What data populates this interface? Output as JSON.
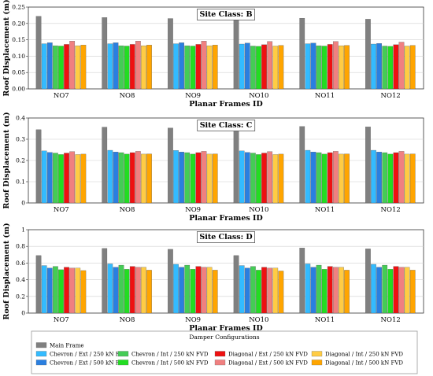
{
  "legend": {
    "title": "Damper Configurations",
    "items": [
      {
        "name": "Main Frame",
        "color": "#808080"
      },
      {
        "name": "Chevron / Ext / 250 kN FVD",
        "color": "#33bbff"
      },
      {
        "name": "Chevron / Ext / 500 kN FVD",
        "color": "#2a7fe0"
      },
      {
        "name": "Chevron / Int / 250 kN FVD",
        "color": "#44cc55"
      },
      {
        "name": "Chevron / Int / 500 kN FVD",
        "color": "#22dd22"
      },
      {
        "name": "Diagonal / Ext / 250 kN FVD",
        "color": "#ee1111"
      },
      {
        "name": "Diagonal / Ext / 500 kN FVD",
        "color": "#f08080"
      },
      {
        "name": "Diagonal / Int / 250 kN FVD",
        "color": "#ffcc44"
      },
      {
        "name": "Diagonal / Int / 500 kN FVD",
        "color": "#ffa500"
      }
    ]
  },
  "chart_data": [
    {
      "type": "bar",
      "title": "Site Class: B",
      "xlabel": "Planar Frames ID",
      "ylabel": "Roof Displacement (m)",
      "ylim": [
        0,
        0.25
      ],
      "yticks": [
        "0.00",
        "0.05",
        "0.10",
        "0.15",
        "0.20",
        "0.25"
      ],
      "grid": true,
      "categories": [
        "NO7",
        "NO8",
        "NO9",
        "NO10",
        "NO11",
        "NO12"
      ],
      "series": [
        {
          "name": "Main Frame",
          "values": [
            0.222,
            0.218,
            0.215,
            0.22,
            0.216,
            0.213
          ]
        },
        {
          "name": "Chevron / Ext / 250 kN FVD",
          "values": [
            0.138,
            0.138,
            0.138,
            0.137,
            0.138,
            0.137
          ]
        },
        {
          "name": "Chevron / Ext / 500 kN FVD",
          "values": [
            0.141,
            0.141,
            0.141,
            0.14,
            0.14,
            0.139
          ]
        },
        {
          "name": "Chevron / Int / 250 kN FVD",
          "values": [
            0.132,
            0.132,
            0.132,
            0.131,
            0.132,
            0.131
          ]
        },
        {
          "name": "Chevron / Int / 500 kN FVD",
          "values": [
            0.131,
            0.131,
            0.131,
            0.13,
            0.131,
            0.13
          ]
        },
        {
          "name": "Diagonal / Ext / 250 kN FVD",
          "values": [
            0.136,
            0.136,
            0.136,
            0.135,
            0.136,
            0.135
          ]
        },
        {
          "name": "Diagonal / Ext / 500 kN FVD",
          "values": [
            0.146,
            0.146,
            0.146,
            0.145,
            0.145,
            0.143
          ]
        },
        {
          "name": "Diagonal / Int / 250 kN FVD",
          "values": [
            0.132,
            0.132,
            0.132,
            0.131,
            0.132,
            0.131
          ]
        },
        {
          "name": "Diagonal / Int / 500 kN FVD",
          "values": [
            0.134,
            0.134,
            0.134,
            0.133,
            0.133,
            0.133
          ]
        }
      ]
    },
    {
      "type": "bar",
      "title": "Site Class: C",
      "xlabel": "Planar Frames ID",
      "ylabel": "Roof Displacement (m)",
      "ylim": [
        0,
        0.4
      ],
      "yticks": [
        "0",
        "0.1",
        "0.2",
        "0.3",
        "0.4"
      ],
      "grid": true,
      "categories": [
        "NO7",
        "NO8",
        "NO9",
        "NO10",
        "NO11",
        "NO12"
      ],
      "series": [
        {
          "name": "Main Frame",
          "values": [
            0.345,
            0.357,
            0.353,
            0.345,
            0.36,
            0.358
          ]
        },
        {
          "name": "Chevron / Ext / 250 kN FVD",
          "values": [
            0.245,
            0.248,
            0.247,
            0.245,
            0.248,
            0.248
          ]
        },
        {
          "name": "Chevron / Ext / 500 kN FVD",
          "values": [
            0.238,
            0.24,
            0.24,
            0.238,
            0.24,
            0.24
          ]
        },
        {
          "name": "Chevron / Int / 250 kN FVD",
          "values": [
            0.235,
            0.237,
            0.237,
            0.235,
            0.237,
            0.237
          ]
        },
        {
          "name": "Chevron / Int / 500 kN FVD",
          "values": [
            0.228,
            0.23,
            0.23,
            0.228,
            0.23,
            0.23
          ]
        },
        {
          "name": "Diagonal / Ext / 250 kN FVD",
          "values": [
            0.235,
            0.237,
            0.237,
            0.235,
            0.237,
            0.237
          ]
        },
        {
          "name": "Diagonal / Ext / 500 kN FVD",
          "values": [
            0.242,
            0.243,
            0.243,
            0.242,
            0.243,
            0.243
          ]
        },
        {
          "name": "Diagonal / Int / 250 kN FVD",
          "values": [
            0.228,
            0.23,
            0.23,
            0.228,
            0.23,
            0.23
          ]
        },
        {
          "name": "Diagonal / Int / 500 kN FVD",
          "values": [
            0.23,
            0.231,
            0.231,
            0.23,
            0.231,
            0.231
          ]
        }
      ]
    },
    {
      "type": "bar",
      "title": "Site Class: D",
      "xlabel": "Planar Frames ID",
      "ylabel": "Roof Displacement (m)",
      "ylim": [
        0,
        1.0
      ],
      "yticks": [
        "0",
        "0.2",
        "0.4",
        "0.6",
        "0.8",
        "1"
      ],
      "grid": true,
      "categories": [
        "NO7",
        "NO8",
        "NO9",
        "NO10",
        "NO11",
        "NO12"
      ],
      "series": [
        {
          "name": "Main Frame",
          "values": [
            0.69,
            0.775,
            0.765,
            0.69,
            0.78,
            0.77
          ]
        },
        {
          "name": "Chevron / Ext / 250 kN FVD",
          "values": [
            0.57,
            0.59,
            0.585,
            0.57,
            0.59,
            0.585
          ]
        },
        {
          "name": "Chevron / Ext / 500 kN FVD",
          "values": [
            0.54,
            0.55,
            0.55,
            0.54,
            0.55,
            0.55
          ]
        },
        {
          "name": "Chevron / Int / 250 kN FVD",
          "values": [
            0.56,
            0.575,
            0.575,
            0.56,
            0.575,
            0.575
          ]
        },
        {
          "name": "Chevron / Int / 500 kN FVD",
          "values": [
            0.52,
            0.525,
            0.525,
            0.515,
            0.525,
            0.525
          ]
        },
        {
          "name": "Diagonal / Ext / 250 kN FVD",
          "values": [
            0.55,
            0.56,
            0.56,
            0.55,
            0.56,
            0.56
          ]
        },
        {
          "name": "Diagonal / Ext / 500 kN FVD",
          "values": [
            0.54,
            0.55,
            0.55,
            0.54,
            0.55,
            0.55
          ]
        },
        {
          "name": "Diagonal / Int / 250 kN FVD",
          "values": [
            0.54,
            0.55,
            0.55,
            0.54,
            0.55,
            0.55
          ]
        },
        {
          "name": "Diagonal / Int / 500 kN FVD",
          "values": [
            0.51,
            0.515,
            0.515,
            0.505,
            0.515,
            0.515
          ]
        }
      ]
    }
  ]
}
